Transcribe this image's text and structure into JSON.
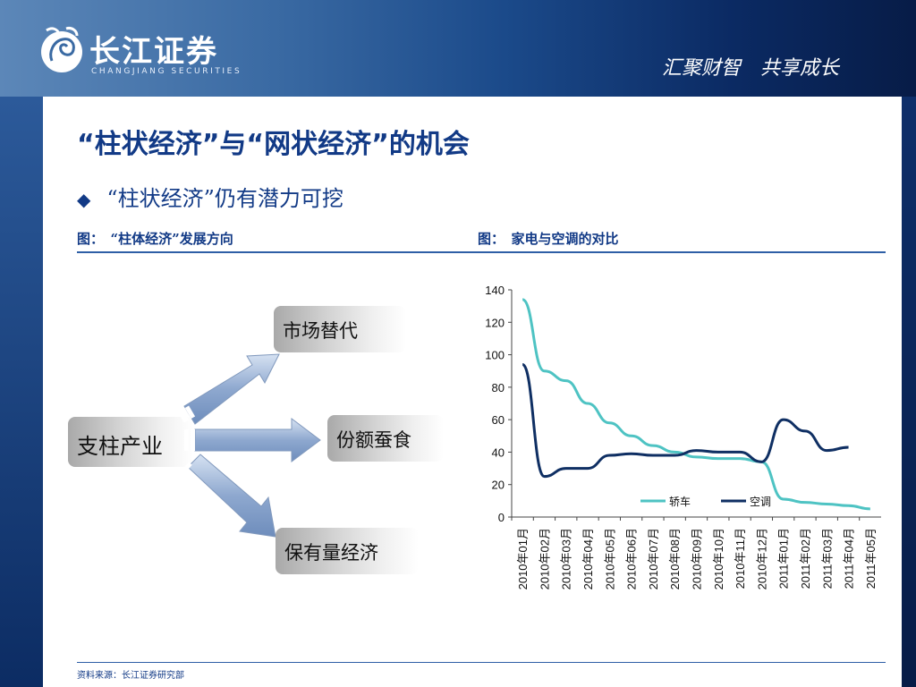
{
  "header": {
    "logo_cn": "长江证券",
    "logo_en": "CHANGJIANG SECURITIES",
    "slogan": "汇聚财智　共享成长"
  },
  "slide": {
    "title": "“柱状经济”与“网状经济”的机会",
    "bullet": "“柱状经济”仍有潜力可挖",
    "caption_left": "图：　“柱体经济”发展方向",
    "caption_right": "图：　家电与空调的对比",
    "source": "资料来源：长江证券研究部"
  },
  "diagram": {
    "main": "支柱产业",
    "branches": [
      "市场替代",
      "份额蚕食",
      "保有量经济"
    ]
  },
  "colors": {
    "series_car": "#4ec3c3",
    "series_ac": "#0f2f63",
    "title": "#123a86"
  },
  "chart_data": {
    "type": "line",
    "categories": [
      "2010年01月",
      "2010年02月",
      "2010年03月",
      "2010年04月",
      "2010年05月",
      "2010年06月",
      "2010年07月",
      "2010年08月",
      "2010年09月",
      "2010年10月",
      "2010年11月",
      "2010年12月",
      "2011年01月",
      "2011年02月",
      "2011年03月",
      "2011年04月",
      "2011年05月"
    ],
    "series": [
      {
        "name": "轿车",
        "values": [
          134,
          90,
          84,
          70,
          58,
          50,
          44,
          40,
          37,
          36,
          36,
          34,
          11,
          9,
          8,
          7,
          5
        ]
      },
      {
        "name": "空调",
        "values": [
          94,
          25,
          30,
          30,
          38,
          39,
          38,
          38,
          41,
          40,
          40,
          34,
          60,
          53,
          41,
          43,
          null
        ]
      }
    ],
    "ylim": [
      0,
      140
    ],
    "yticks": [
      0,
      20,
      40,
      60,
      80,
      100,
      120,
      140
    ],
    "legend_position": "bottom-right",
    "grid": false
  }
}
